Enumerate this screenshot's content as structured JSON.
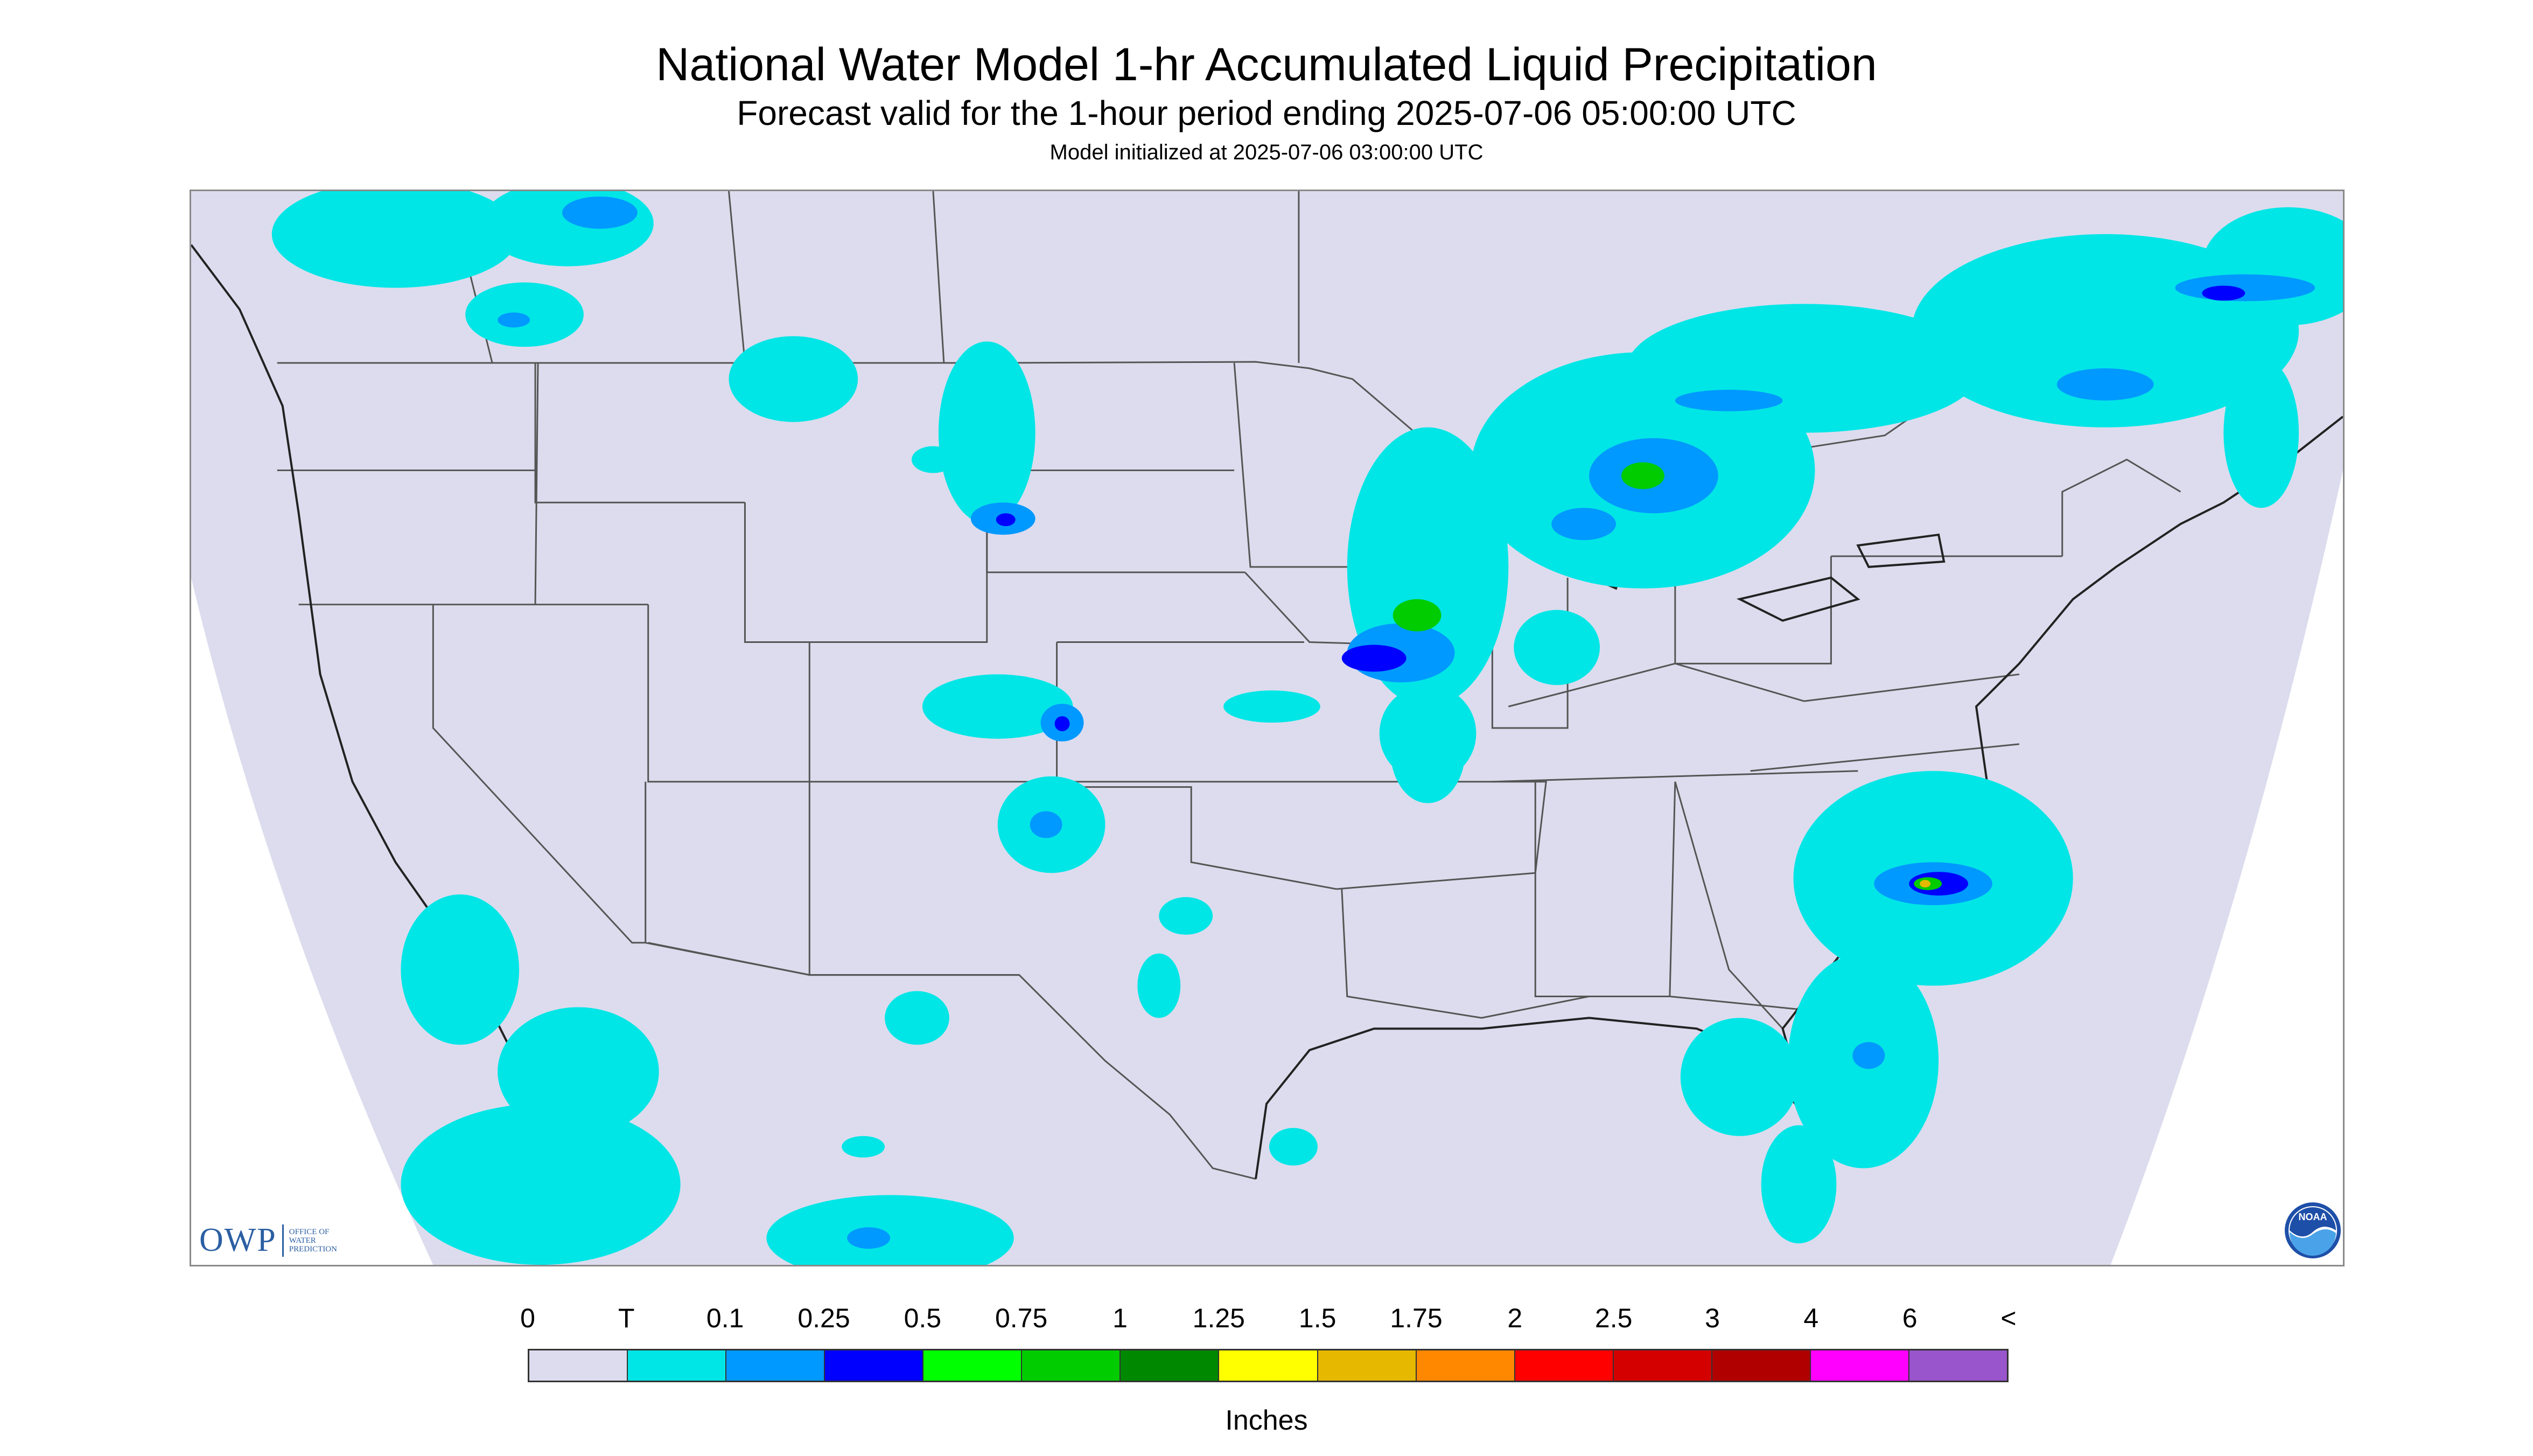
{
  "header": {
    "title": "National Water Model 1-hr Accumulated Liquid Precipitation",
    "subtitle": "Forecast valid for the 1-hour period ending 2025-07-06 05:00:00 UTC",
    "init": "Model initialized at 2025-07-06 03:00:00 UTC"
  },
  "logos": {
    "owp_mark": "OWP",
    "owp_text_1": "OFFICE OF",
    "owp_text_2": "WATER",
    "owp_text_3": "PREDICTION",
    "noaa": "NOAA"
  },
  "map": {
    "region": "Continental United States",
    "projection_fill_color": "#dcdcee",
    "outside_fill_color": "#ffffff",
    "boundary_color": "#4a4a4a"
  },
  "legend": {
    "tick_labels": [
      "0",
      "T",
      "0.1",
      "0.25",
      "0.5",
      "0.75",
      "1",
      "1.25",
      "1.5",
      "1.75",
      "2",
      "2.5",
      "3",
      "4",
      "6",
      "<"
    ],
    "colors": [
      "#dcdcee",
      "#00e6e6",
      "#0099ff",
      "#0000ff",
      "#00ff00",
      "#00cc00",
      "#008800",
      "#ffff00",
      "#e6b800",
      "#ff8800",
      "#ff0000",
      "#d40000",
      "#b00000",
      "#ff00ff",
      "#9955cc"
    ],
    "units": "Inches"
  }
}
